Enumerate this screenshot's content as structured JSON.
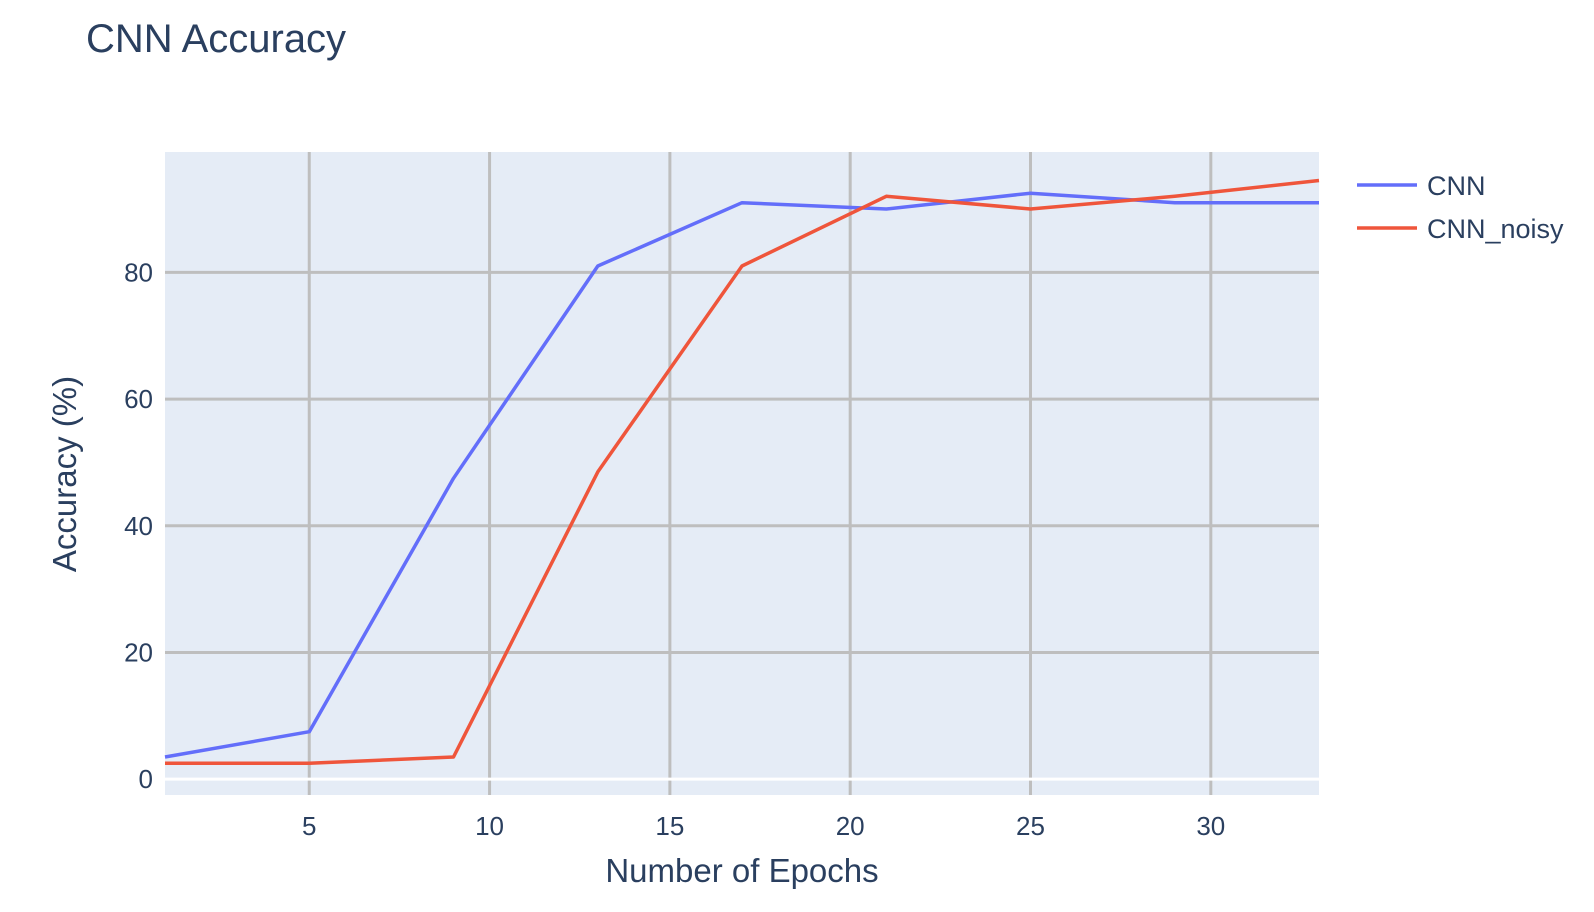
{
  "chart_data": {
    "type": "line",
    "title": "CNN Accuracy",
    "xlabel": "Number of Epochs",
    "ylabel": "Accuracy (%)",
    "xlim": [
      1,
      33
    ],
    "ylim": [
      -2.5,
      99
    ],
    "x_ticks": [
      5,
      10,
      15,
      20,
      25,
      30
    ],
    "y_ticks": [
      0,
      20,
      40,
      60,
      80
    ],
    "grid": true,
    "legend_position": "top-right",
    "x": [
      1,
      5,
      9,
      13,
      17,
      21,
      25,
      29,
      33
    ],
    "series": [
      {
        "name": "CNN",
        "color": "#636efa",
        "values": [
          3.5,
          7.5,
          47.5,
          81,
          91,
          90,
          92.5,
          91,
          91
        ]
      },
      {
        "name": "CNN_noisy",
        "color": "#ef553b",
        "values": [
          2.5,
          2.5,
          3.5,
          48.5,
          81,
          92,
          90,
          92,
          94.5
        ]
      }
    ],
    "plot_background": "#e5ecf6",
    "grid_color": "#bebebe",
    "zero_line_color": "#ffffff"
  }
}
